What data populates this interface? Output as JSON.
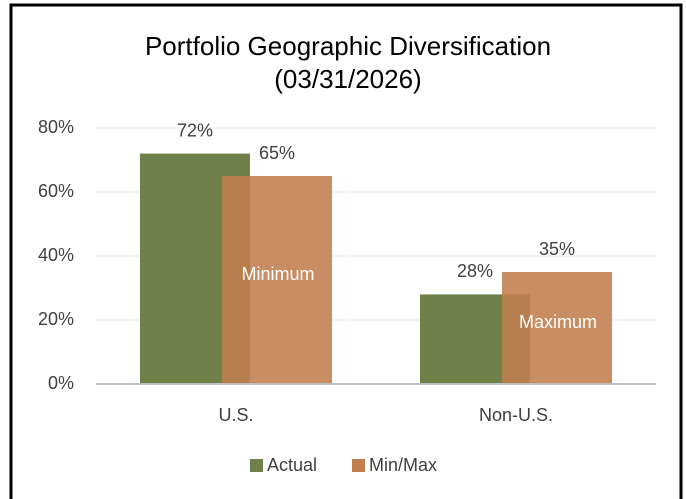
{
  "chart_data": {
    "type": "bar",
    "title": "Portfolio Geographic Diversification (03/31/2026)",
    "categories": [
      "U.S.",
      "Non-U.S."
    ],
    "series": [
      {
        "name": "Actual",
        "color": "#6e8149",
        "values": [
          72,
          28
        ],
        "value_labels": [
          "72%",
          "28%"
        ]
      },
      {
        "name": "Min/Max",
        "color": "#c07d4d",
        "values": [
          65,
          35
        ],
        "value_labels": [
          "65%",
          "35%"
        ],
        "bar_labels": [
          "Minimum",
          "Maximum"
        ]
      }
    ],
    "ylim": [
      0,
      80
    ],
    "yticks": [
      {
        "value": 0,
        "label": "0%"
      },
      {
        "value": 20,
        "label": "20%"
      },
      {
        "value": 40,
        "label": "40%"
      },
      {
        "value": 60,
        "label": "60%"
      },
      {
        "value": 80,
        "label": "80%"
      }
    ],
    "grid": true,
    "legend": "bottom"
  }
}
